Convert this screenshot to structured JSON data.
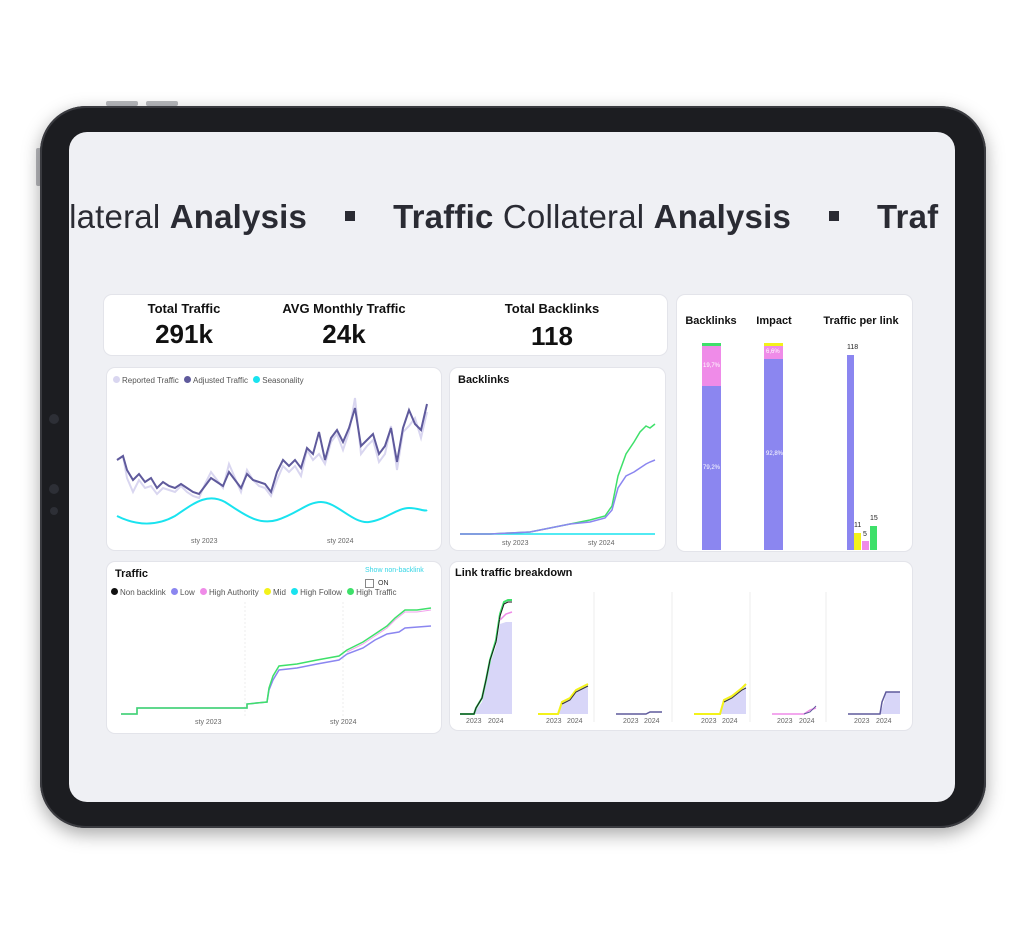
{
  "banner": {
    "segments": [
      {
        "normal": "ollateral ",
        "bold": "Analysis"
      },
      {
        "bold": "Traffic",
        "normal": " Collateral ",
        "bold2": "Analysis"
      },
      {
        "bold": "Traf"
      }
    ]
  },
  "kpis": [
    {
      "label": "Total Traffic",
      "value": "291k"
    },
    {
      "label": "AVG Monthly Traffic",
      "value": "24k"
    },
    {
      "label": "Total Backlinks",
      "value": "118"
    }
  ],
  "traffic_chart": {
    "legend": [
      {
        "name": "Reported Traffic",
        "color": "#d9d6f0"
      },
      {
        "name": "Adjusted Traffic",
        "color": "#5f5a9c"
      },
      {
        "name": "Seasonality",
        "color": "#19e3ef"
      }
    ],
    "x_ticks": [
      "sty 2023",
      "sty 2024"
    ]
  },
  "backlinks_chart": {
    "title": "Backlinks",
    "x_ticks": [
      "sty 2023",
      "sty 2024"
    ]
  },
  "breakdown_panel": {
    "columns": [
      "Backlinks",
      "Impact",
      "Traffic per link"
    ],
    "backlinks_pct": {
      "main": "79,2%",
      "pink": "19,7%"
    },
    "impact_pct": {
      "main": "92,8%",
      "pink": "6,6%"
    },
    "traffic_per_link": [
      "118",
      "11",
      "5",
      "15"
    ]
  },
  "traffic_panel": {
    "title": "Traffic",
    "toggle_link": "Show non-backlink",
    "toggle_label": "ON",
    "legend": [
      {
        "name": "Non backlink",
        "color": "#111111"
      },
      {
        "name": "Low",
        "color": "#8b86f0"
      },
      {
        "name": "High Authority",
        "color": "#ef8be8"
      },
      {
        "name": "Mid",
        "color": "#f3f21a"
      },
      {
        "name": "High Follow",
        "color": "#19e3ef"
      },
      {
        "name": "High Traffic",
        "color": "#3ee06a"
      }
    ],
    "x_ticks": [
      "sty 2023",
      "sty 2024"
    ]
  },
  "link_breakdown": {
    "title": "Link traffic breakdown",
    "year_ticks": [
      "2023",
      "2024"
    ]
  },
  "colors": {
    "purple": "#8b86f0",
    "dark_purple": "#5f5a9c",
    "pink": "#ef8be8",
    "green": "#3ee06a",
    "cyan": "#19e3ef",
    "yellow": "#f3f21a"
  }
}
